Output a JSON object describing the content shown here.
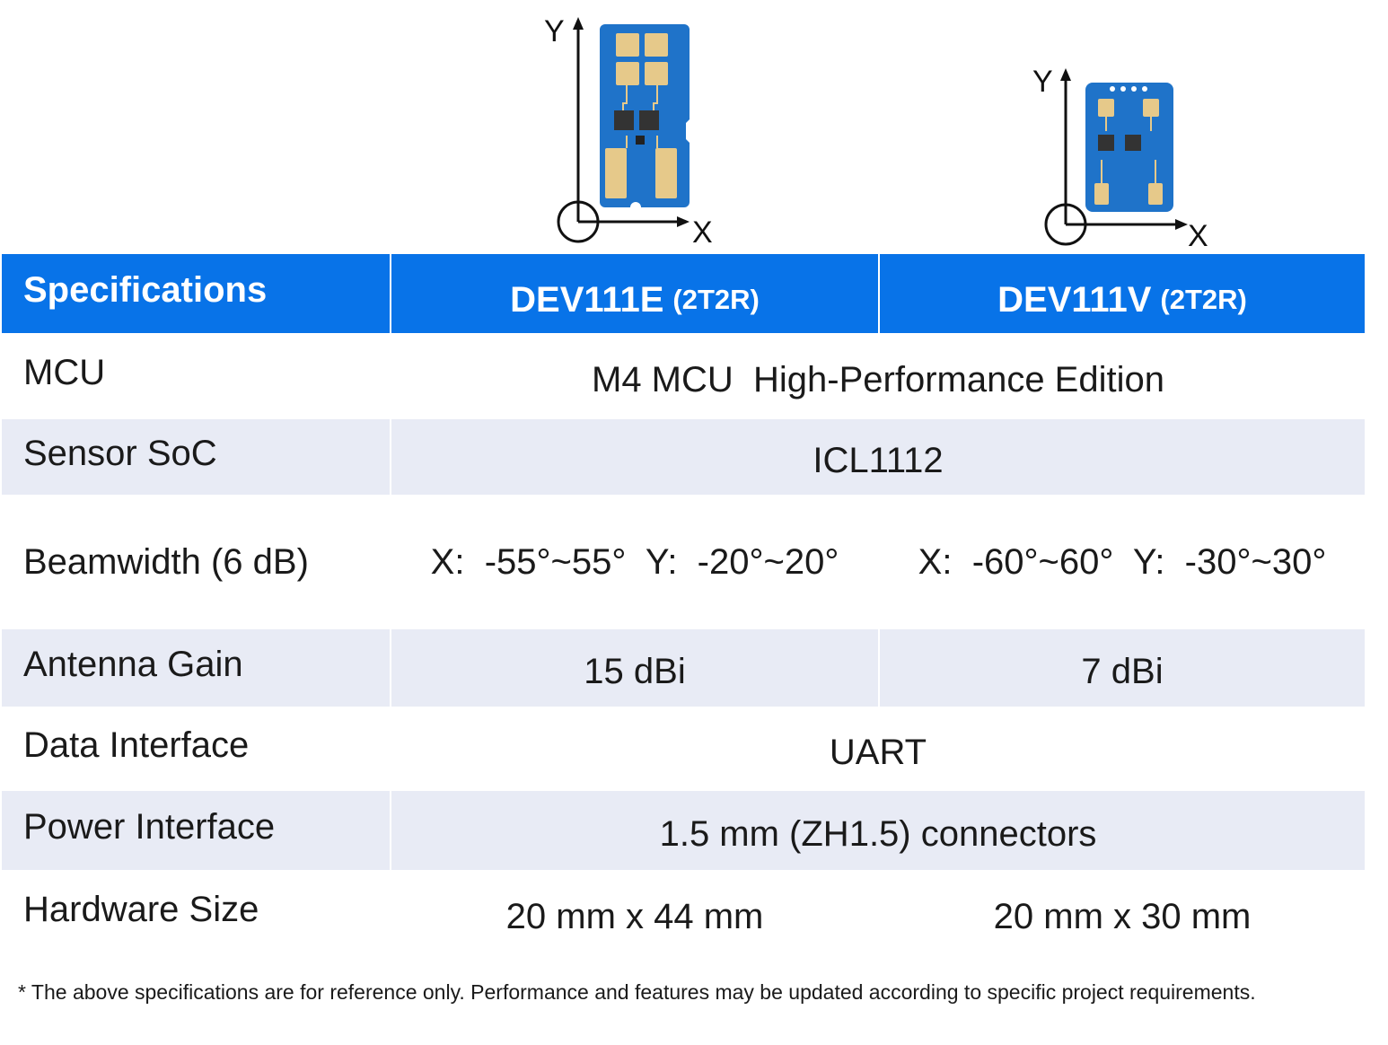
{
  "boards": [
    {
      "name": "DEV111E",
      "axis_y": "Y",
      "axis_x": "X"
    },
    {
      "name": "DEV111V",
      "axis_y": "Y",
      "axis_x": "X"
    }
  ],
  "table": {
    "header": {
      "label": "Specifications",
      "col_a": {
        "name": "DEV111E",
        "config": "(2T2R)"
      },
      "col_b": {
        "name": "DEV111V",
        "config": "(2T2R)"
      }
    },
    "rows": [
      {
        "label": "MCU",
        "value": "M4 MCU  High-Performance Edition"
      },
      {
        "label": "Sensor SoC",
        "value": "ICL1112"
      },
      {
        "label": "Beamwidth (6 dB)",
        "a": "X:  -55°~55°  Y:  -20°~20°",
        "b": "X:  -60°~60°  Y:  -30°~30°"
      },
      {
        "label": "Antenna Gain",
        "a": "15 dBi",
        "b": "7 dBi"
      },
      {
        "label": "Data Interface",
        "value": "UART"
      },
      {
        "label": "Power Interface",
        "value": "1.5 mm (ZH1.5) connectors"
      },
      {
        "label": "Hardware Size",
        "a": "20 mm x 44 mm",
        "b": "20 mm x 30 mm"
      }
    ]
  },
  "footnote": "* The above specifications are for reference only. Performance and features may be updated according to specific project requirements.",
  "colors": {
    "header_bg": "#0873e8",
    "row_shade": "#e8ebf5",
    "pcb_blue": "#1f73c9",
    "pad_gold": "#e6c98a"
  }
}
